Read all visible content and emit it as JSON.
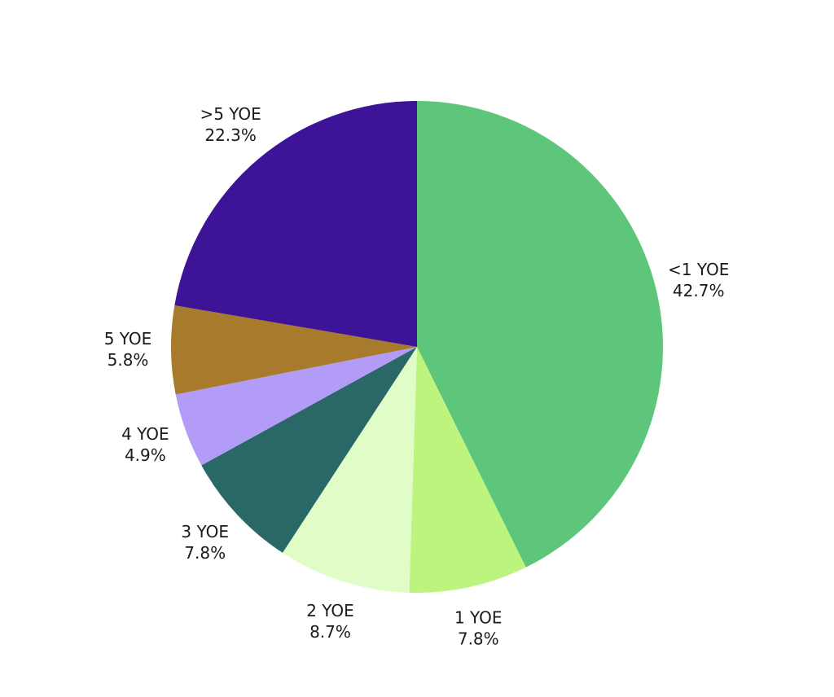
{
  "chart_data": {
    "type": "pie",
    "categories": [
      "<1 YOE",
      "1 YOE",
      "2 YOE",
      "3 YOE",
      "4 YOE",
      "5 YOE",
      ">5 YOE"
    ],
    "values": [
      42.7,
      7.8,
      8.7,
      7.8,
      4.9,
      5.8,
      22.3
    ],
    "value_labels": [
      "42.7%",
      "7.8%",
      "8.7%",
      "7.8%",
      "4.9%",
      "5.8%",
      "22.3%"
    ],
    "colors": [
      "#5dc67b",
      "#bdf47d",
      "#e0fdc7",
      "#2a6767",
      "#b39cf7",
      "#a77a2c",
      "#3d1497"
    ]
  }
}
